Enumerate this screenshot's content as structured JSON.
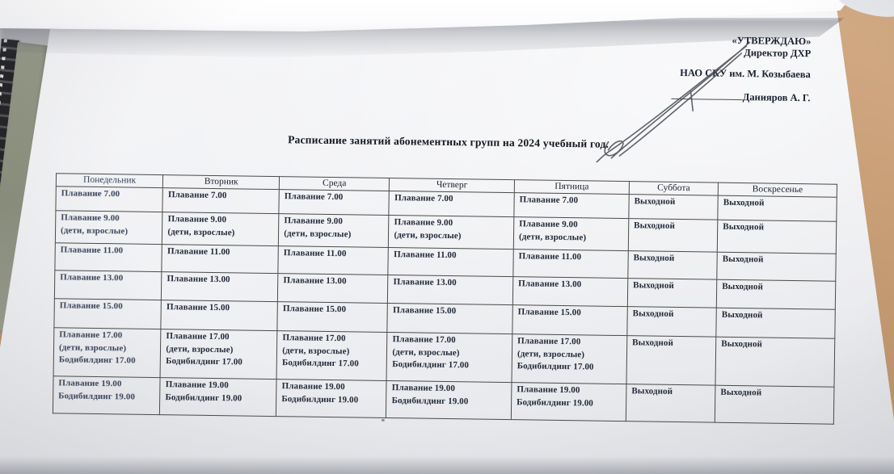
{
  "colors": {
    "ink": "#222a38",
    "paper": "#f0f1f4",
    "wood": "#c49a72",
    "table_line": "#4a4a4a"
  },
  "approval": {
    "stamp": "«УТВЕРЖДАЮ»",
    "role": "Директор ДХР",
    "organization": "НАО СКУ им. М. Козыбаева",
    "signer": "Данияров А. Г."
  },
  "title": "Расписание занятий абонементных групп на 2024 учебный год.",
  "schedule": {
    "columns": [
      "Понедельник",
      "Вторник",
      "Среда",
      "Четверг",
      "Пятница",
      "Суббота",
      "Воскресенье"
    ],
    "rows": [
      [
        [
          "Плавание 7.00"
        ],
        [
          "Плавание 7.00"
        ],
        [
          "Плавание 7.00"
        ],
        [
          "Плавание 7.00"
        ],
        [
          "Плавание 7.00"
        ],
        [
          "Выходной"
        ],
        [
          "Выходной"
        ]
      ],
      [
        [
          "Плавание 9.00",
          "(дети, взрослые)"
        ],
        [
          "Плавание 9.00",
          "(дети, взрослые)"
        ],
        [
          "Плавание 9.00",
          "(дети, взрослые)"
        ],
        [
          "Плавание 9.00",
          "(дети, взрослые)"
        ],
        [
          "Плавание 9.00",
          "(дети, взрослые)"
        ],
        [
          "Выходной"
        ],
        [
          "Выходной"
        ]
      ],
      [
        [
          "Плавание 11.00"
        ],
        [
          "Плавание 11.00"
        ],
        [
          "Плавание 11.00"
        ],
        [
          "Плавание 11.00"
        ],
        [
          "Плавание 11.00"
        ],
        [
          "Выходной"
        ],
        [
          "Выходной"
        ]
      ],
      [
        [
          "Плавание 13.00"
        ],
        [
          "Плавание 13.00"
        ],
        [
          "Плавание 13.00"
        ],
        [
          "Плавание 13.00"
        ],
        [
          "Плавание 13.00"
        ],
        [
          "Выходной"
        ],
        [
          "Выходной"
        ]
      ],
      [
        [
          "Плавание 15.00"
        ],
        [
          "Плавание 15.00"
        ],
        [
          "Плавание 15.00"
        ],
        [
          "Плавание 15.00"
        ],
        [
          "Плавание 15.00"
        ],
        [
          "Выходной"
        ],
        [
          "Выходной"
        ]
      ],
      [
        [
          "Плавание 17.00",
          "(дети, взрослые)",
          "Бодибилдинг 17.00"
        ],
        [
          "Плавание 17.00",
          "(дети, взрослые)",
          "Бодибилдинг 17.00"
        ],
        [
          "Плавание 17.00",
          "(дети, взрослые)",
          "Бодибилдинг 17.00"
        ],
        [
          "Плавание 17.00",
          "(дети, взрослые)",
          "Бодибилдинг 17.00"
        ],
        [
          "Плавание 17.00",
          "(дети, взрослые)",
          "Бодибилдинг 17.00"
        ],
        [
          "Выходной"
        ],
        [
          "Выходной"
        ]
      ],
      [
        [
          "Плавание 19.00",
          "Бодибилдинг 19.00"
        ],
        [
          "Плавание 19.00",
          "Бодибилдинг 19.00"
        ],
        [
          "Плавание 19.00",
          "Бодибилдинг 19.00"
        ],
        [
          "Плавание 19.00",
          "Бодибилдинг 19.00"
        ],
        [
          "Плавание 19.00",
          "Бодибилдинг 19.00"
        ],
        [
          "Выходной"
        ],
        [
          "Выходной"
        ]
      ]
    ]
  }
}
